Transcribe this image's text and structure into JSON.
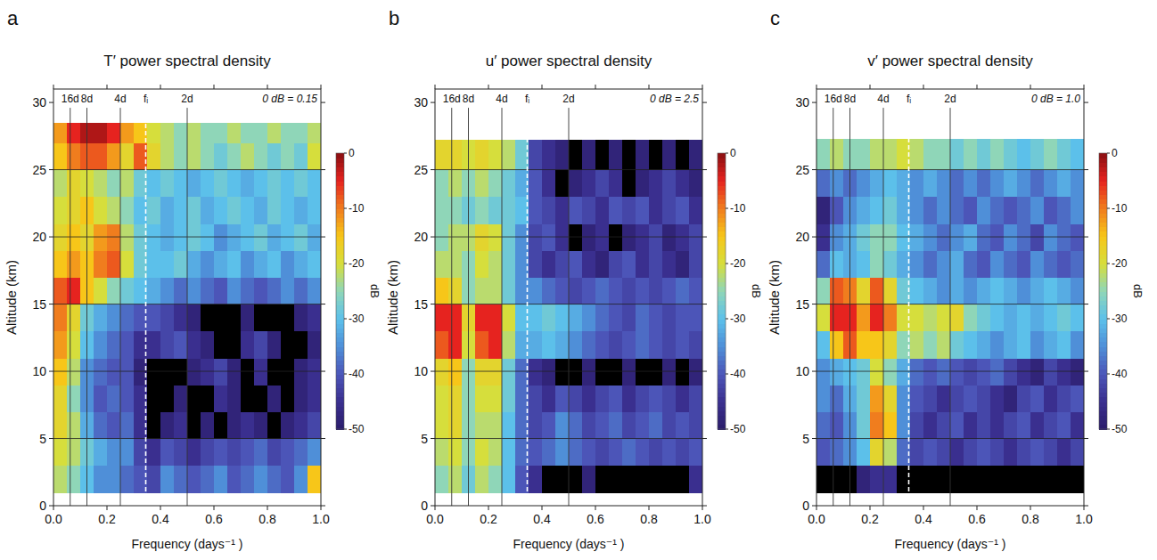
{
  "chart_data": [
    {
      "type": "heatmap",
      "letter": "a",
      "title": "T′ power spectral density",
      "x_label": "Frequency (days⁻¹ )",
      "y_label": "Altitude (km)",
      "xlim": [
        0,
        1
      ],
      "xticks": [
        {
          "value": 0,
          "label": "0.0"
        },
        0.2,
        0.4,
        0.6,
        0.8,
        {
          "value": 1,
          "label": "1.0"
        }
      ],
      "ylim": [
        0,
        31
      ],
      "yticks": [
        0,
        5,
        10,
        15,
        20,
        25,
        30
      ],
      "grid": true,
      "annotation": "0 dB = 0.15",
      "period_lines": [
        {
          "value": 0.0625,
          "label": "16d",
          "line_style": "solid"
        },
        {
          "value": 0.125,
          "label": "8d",
          "line_style": "solid"
        },
        {
          "value": 0.25,
          "label": "4d",
          "line_style": "solid"
        },
        {
          "value": 0.345,
          "label": "fᵢ",
          "line_style": "dashed"
        },
        {
          "value": 0.5,
          "label": "2d",
          "line_style": "solid"
        }
      ],
      "colorbar": {
        "range": [
          -50,
          0
        ],
        "ticks": [
          0,
          -10,
          -20,
          -30,
          -40,
          -50
        ],
        "label": "dB"
      },
      "x_bins": [
        0,
        0.05,
        0.1,
        0.15,
        0.2,
        0.25,
        0.3,
        0.35,
        0.4,
        0.45,
        0.5,
        0.55,
        0.6,
        0.65,
        0.7,
        0.75,
        0.8,
        0.85,
        0.9,
        0.95,
        1
      ],
      "y_bins": [
        1,
        3,
        5,
        7,
        9,
        11,
        13,
        15,
        17,
        19,
        21,
        23,
        25,
        27,
        28.5
      ],
      "cells": [
        [
          -22,
          -25,
          -30,
          -35,
          -35,
          -38,
          -40,
          -42,
          -35,
          -38,
          -40,
          -38,
          -35,
          -40,
          -38,
          -35,
          -38,
          -40,
          -35,
          -15
        ],
        [
          -20,
          -22,
          -28,
          -32,
          -35,
          -35,
          -42,
          -45,
          -40,
          -42,
          -45,
          -42,
          -40,
          -42,
          -40,
          -38,
          -42,
          -40,
          -38,
          -35
        ],
        [
          -18,
          -22,
          -32,
          -38,
          -40,
          -38,
          -45,
          -55,
          -48,
          -45,
          -55,
          -48,
          -55,
          -48,
          -45,
          -48,
          -55,
          -48,
          -45,
          -42
        ],
        [
          -18,
          -25,
          -35,
          -40,
          -38,
          -40,
          -45,
          -55,
          -55,
          -48,
          -55,
          -55,
          -45,
          -48,
          -55,
          -55,
          -48,
          -55,
          -48,
          -45
        ],
        [
          -15,
          -22,
          -35,
          -38,
          -40,
          -40,
          -48,
          -55,
          -55,
          -55,
          -48,
          -45,
          -42,
          -48,
          -55,
          -45,
          -55,
          -55,
          -48,
          -45
        ],
        [
          -12,
          -20,
          -30,
          -35,
          -38,
          -40,
          -45,
          -45,
          -42,
          -40,
          -45,
          -48,
          -55,
          -55,
          -45,
          -42,
          -48,
          -55,
          -55,
          -48
        ],
        [
          -10,
          -18,
          -28,
          -32,
          -35,
          -38,
          -40,
          -40,
          -42,
          -45,
          -48,
          -55,
          -55,
          -55,
          -48,
          -55,
          -55,
          -55,
          -48,
          -45
        ],
        [
          -8,
          -5,
          -15,
          -20,
          -25,
          -28,
          -30,
          -32,
          -35,
          -38,
          -35,
          -38,
          -40,
          -35,
          -38,
          -40,
          -38,
          -35,
          -38,
          -35
        ],
        [
          -15,
          -12,
          -15,
          -10,
          -8,
          -20,
          -28,
          -30,
          -30,
          -28,
          -32,
          -35,
          -32,
          -30,
          -35,
          -32,
          -30,
          -35,
          -32,
          -30
        ],
        [
          -18,
          -15,
          -18,
          -12,
          -10,
          -22,
          -28,
          -30,
          -32,
          -30,
          -28,
          -30,
          -35,
          -32,
          -30,
          -28,
          -32,
          -30,
          -28,
          -32
        ],
        [
          -20,
          -18,
          -15,
          -20,
          -22,
          -25,
          -30,
          -28,
          -32,
          -30,
          -28,
          -32,
          -30,
          -28,
          -30,
          -32,
          -28,
          -30,
          -32,
          -30
        ],
        [
          -22,
          -18,
          -20,
          -22,
          -25,
          -22,
          -28,
          -30,
          -28,
          -30,
          -32,
          -30,
          -28,
          -30,
          -32,
          -30,
          -28,
          -30,
          -28,
          -30
        ],
        [
          -15,
          -10,
          -8,
          -8,
          -12,
          -18,
          -8,
          -18,
          -22,
          -25,
          -22,
          -25,
          -28,
          -25,
          -22,
          -25,
          -28,
          -25,
          -28,
          -20
        ],
        [
          -12,
          -5,
          -2,
          -2,
          -5,
          -12,
          -15,
          -20,
          -22,
          -25,
          -22,
          -25,
          -25,
          -22,
          -25,
          -25,
          -22,
          -25,
          -25,
          -22
        ]
      ]
    },
    {
      "type": "heatmap",
      "letter": "b",
      "title": "u′ power spectral density",
      "x_label": "Frequency (days⁻¹ )",
      "y_label": "Altitude (km)",
      "xlim": [
        0,
        1
      ],
      "xticks": [
        {
          "value": 0,
          "label": "0.0"
        },
        0.2,
        0.4,
        0.6,
        0.8,
        {
          "value": 1,
          "label": "1.0"
        }
      ],
      "ylim": [
        0,
        31
      ],
      "yticks": [
        0,
        5,
        10,
        15,
        20,
        25,
        30
      ],
      "grid": true,
      "annotation": "0 dB = 2.5",
      "period_lines": [
        {
          "value": 0.0625,
          "label": "16d",
          "line_style": "solid"
        },
        {
          "value": 0.125,
          "label": "8d",
          "line_style": "solid"
        },
        {
          "value": 0.25,
          "label": "4d",
          "line_style": "solid"
        },
        {
          "value": 0.345,
          "label": "fᵢ",
          "line_style": "dashed"
        },
        {
          "value": 0.5,
          "label": "2d",
          "line_style": "solid"
        }
      ],
      "colorbar": {
        "range": [
          -50,
          0
        ],
        "ticks": [
          0,
          -10,
          -20,
          -30,
          -40,
          -50
        ],
        "label": "dB"
      },
      "x_bins": [
        0,
        0.05,
        0.1,
        0.15,
        0.2,
        0.25,
        0.3,
        0.35,
        0.4,
        0.45,
        0.5,
        0.55,
        0.6,
        0.65,
        0.7,
        0.75,
        0.8,
        0.85,
        0.9,
        0.95,
        1
      ],
      "y_bins": [
        1,
        3,
        5,
        7,
        9,
        11,
        13,
        15,
        17,
        19,
        21,
        23,
        25,
        27.2
      ],
      "cells": [
        [
          -25,
          -22,
          -28,
          -22,
          -25,
          -30,
          -40,
          -45,
          -55,
          -55,
          -55,
          -48,
          -55,
          -55,
          -55,
          -55,
          -55,
          -55,
          -55,
          -45
        ],
        [
          -22,
          -20,
          -25,
          -20,
          -22,
          -30,
          -38,
          -40,
          -38,
          -35,
          -38,
          -40,
          -42,
          -40,
          -38,
          -40,
          -42,
          -40,
          -42,
          -40
        ],
        [
          -20,
          -18,
          -25,
          -22,
          -22,
          -30,
          -38,
          -42,
          -40,
          -35,
          -38,
          -42,
          -40,
          -38,
          -42,
          -40,
          -38,
          -42,
          -40,
          -42
        ],
        [
          -20,
          -18,
          -25,
          -20,
          -20,
          -28,
          -38,
          -42,
          -45,
          -40,
          -42,
          -45,
          -42,
          -40,
          -45,
          -42,
          -40,
          -42,
          -45,
          -42
        ],
        [
          -18,
          -15,
          -25,
          -18,
          -18,
          -28,
          -38,
          -45,
          -48,
          -55,
          -55,
          -48,
          -55,
          -55,
          -48,
          -55,
          -55,
          -48,
          -55,
          -48
        ],
        [
          -8,
          -5,
          -20,
          -8,
          -5,
          -22,
          -32,
          -32,
          -30,
          -32,
          -35,
          -38,
          -40,
          -42,
          -40,
          -38,
          -40,
          -42,
          -40,
          -42
        ],
        [
          -5,
          -5,
          -18,
          -5,
          -5,
          -20,
          -30,
          -30,
          -28,
          -30,
          -32,
          -35,
          -38,
          -40,
          -42,
          -38,
          -40,
          -42,
          -40,
          -40
        ],
        [
          -15,
          -18,
          -25,
          -22,
          -22,
          -28,
          -35,
          -35,
          -38,
          -40,
          -42,
          -40,
          -38,
          -40,
          -42,
          -40,
          -42,
          -40,
          -38,
          -40
        ],
        [
          -22,
          -22,
          -25,
          -20,
          -22,
          -28,
          -35,
          -42,
          -45,
          -42,
          -40,
          -45,
          -48,
          -42,
          -40,
          -45,
          -42,
          -45,
          -48,
          -42
        ],
        [
          -25,
          -22,
          -22,
          -18,
          -20,
          -28,
          -35,
          -42,
          -40,
          -45,
          -55,
          -48,
          -45,
          -55,
          -48,
          -45,
          -42,
          -48,
          -45,
          -42
        ],
        [
          -25,
          -25,
          -28,
          -25,
          -28,
          -28,
          -30,
          -40,
          -42,
          -45,
          -40,
          -42,
          -45,
          -40,
          -42,
          -40,
          -45,
          -42,
          -40,
          -45
        ],
        [
          -25,
          -22,
          -25,
          -22,
          -25,
          -28,
          -32,
          -40,
          -45,
          -55,
          -48,
          -45,
          -42,
          -45,
          -55,
          -48,
          -45,
          -42,
          -45,
          -48
        ],
        [
          -18,
          -18,
          -20,
          -18,
          -20,
          -22,
          -28,
          -42,
          -45,
          -48,
          -55,
          -48,
          -55,
          -48,
          -55,
          -48,
          -55,
          -48,
          -55,
          -48
        ]
      ]
    },
    {
      "type": "heatmap",
      "letter": "c",
      "title": "v′ power spectral density",
      "x_label": "Frequency (days⁻¹ )",
      "y_label": "Altitude (km)",
      "xlim": [
        0,
        1
      ],
      "xticks": [
        {
          "value": 0,
          "label": "0.0"
        },
        0.2,
        0.4,
        0.6,
        0.8,
        {
          "value": 1,
          "label": "1.0"
        }
      ],
      "ylim": [
        0,
        31
      ],
      "yticks": [
        0,
        5,
        10,
        15,
        20,
        25,
        30
      ],
      "grid": true,
      "annotation": "0 dB = 1.0",
      "period_lines": [
        {
          "value": 0.0625,
          "label": "16d",
          "line_style": "solid"
        },
        {
          "value": 0.125,
          "label": "8d",
          "line_style": "solid"
        },
        {
          "value": 0.25,
          "label": "4d",
          "line_style": "solid"
        },
        {
          "value": 0.345,
          "label": "fᵢ",
          "line_style": "dashed"
        },
        {
          "value": 0.5,
          "label": "2d",
          "line_style": "solid"
        }
      ],
      "colorbar": {
        "range": [
          -50,
          0
        ],
        "ticks": [
          0,
          -10,
          -20,
          -30,
          -40,
          -50
        ],
        "label": "dB"
      },
      "x_bins": [
        0,
        0.05,
        0.1,
        0.15,
        0.2,
        0.25,
        0.3,
        0.35,
        0.4,
        0.45,
        0.5,
        0.55,
        0.6,
        0.65,
        0.7,
        0.75,
        0.8,
        0.85,
        0.9,
        0.95,
        1
      ],
      "y_bins": [
        1,
        3,
        5,
        7,
        9,
        11,
        13,
        15,
        17,
        19,
        21,
        23,
        25,
        27.3
      ],
      "cells": [
        [
          -55,
          -55,
          -55,
          -48,
          -45,
          -45,
          -55,
          -55,
          -55,
          -55,
          -55,
          -55,
          -55,
          -55,
          -55,
          -55,
          -55,
          -55,
          -55,
          -55
        ],
        [
          -40,
          -38,
          -35,
          -30,
          -18,
          -22,
          -38,
          -42,
          -40,
          -42,
          -45,
          -42,
          -40,
          -42,
          -45,
          -42,
          -40,
          -42,
          -45,
          -42
        ],
        [
          -38,
          -40,
          -35,
          -28,
          -10,
          -15,
          -35,
          -42,
          -45,
          -42,
          -40,
          -45,
          -42,
          -45,
          -42,
          -40,
          -45,
          -42,
          -40,
          -45
        ],
        [
          -35,
          -38,
          -32,
          -28,
          -12,
          -18,
          -35,
          -40,
          -42,
          -45,
          -42,
          -40,
          -42,
          -45,
          -48,
          -42,
          -40,
          -45,
          -42,
          -40
        ],
        [
          -35,
          -32,
          -30,
          -28,
          -20,
          -25,
          -32,
          -38,
          -40,
          -38,
          -40,
          -42,
          -40,
          -38,
          -42,
          -45,
          -48,
          -42,
          -45,
          -48
        ],
        [
          -30,
          -15,
          -8,
          -15,
          -15,
          -18,
          -25,
          -22,
          -25,
          -22,
          -28,
          -30,
          -32,
          -35,
          -32,
          -30,
          -35,
          -32,
          -30,
          -35
        ],
        [
          -20,
          -5,
          -5,
          -12,
          -5,
          -10,
          -20,
          -20,
          -22,
          -20,
          -18,
          -25,
          -28,
          -30,
          -32,
          -30,
          -32,
          -30,
          -28,
          -30
        ],
        [
          -25,
          -8,
          -10,
          -18,
          -8,
          -18,
          -28,
          -30,
          -32,
          -35,
          -32,
          -35,
          -32,
          -30,
          -32,
          -35,
          -32,
          -30,
          -32,
          -35
        ],
        [
          -38,
          -30,
          -32,
          -30,
          -25,
          -28,
          -32,
          -35,
          -38,
          -35,
          -32,
          -38,
          -40,
          -35,
          -38,
          -40,
          -35,
          -38,
          -40,
          -38
        ],
        [
          -45,
          -35,
          -32,
          -28,
          -25,
          -25,
          -30,
          -32,
          -35,
          -38,
          -35,
          -32,
          -38,
          -40,
          -35,
          -38,
          -42,
          -35,
          -38,
          -40
        ],
        [
          -48,
          -40,
          -35,
          -32,
          -30,
          -28,
          -32,
          -35,
          -38,
          -35,
          -38,
          -40,
          -35,
          -38,
          -40,
          -38,
          -35,
          -40,
          -38,
          -35
        ],
        [
          -38,
          -35,
          -38,
          -35,
          -32,
          -30,
          -32,
          -35,
          -32,
          -35,
          -38,
          -35,
          -38,
          -35,
          -32,
          -35,
          -38,
          -35,
          -32,
          -35
        ],
        [
          -25,
          -22,
          -25,
          -25,
          -22,
          -22,
          -20,
          -22,
          -25,
          -25,
          -28,
          -25,
          -28,
          -25,
          -28,
          -30,
          -28,
          -25,
          -28,
          -30
        ]
      ]
    }
  ]
}
